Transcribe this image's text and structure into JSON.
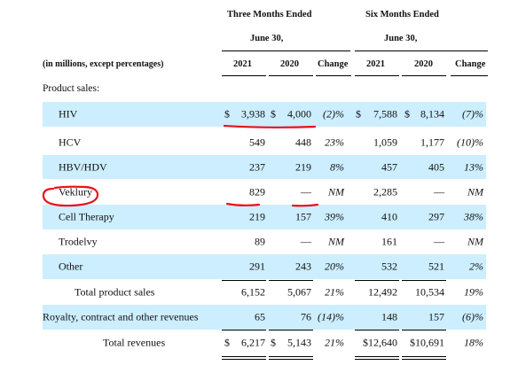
{
  "header": {
    "three_months": "Three Months Ended",
    "three_months_date": "June 30,",
    "six_months": "Six Months Ended",
    "six_months_date": "June 30,",
    "units_note": "(in millions, except percentages)",
    "col_2021a": "2021",
    "col_2020a": "2020",
    "col_change_a": "Change",
    "col_2021b": "2021",
    "col_2020b": "2020",
    "col_change_b": "Change"
  },
  "section_label": "Product sales:",
  "rows": [
    {
      "label": "HIV",
      "d1": "$",
      "v2021a": "3,938",
      "d2": "$",
      "v2020a": "4,000",
      "chg_a": "(2)%",
      "d3": "$",
      "v2021b": "7,588",
      "d4": "$",
      "v2020b": "8,134",
      "chg_b": "(7)%"
    },
    {
      "label": "HCV",
      "v2021a": "549",
      "v2020a": "448",
      "chg_a": "23%",
      "v2021b": "1,059",
      "v2020b": "1,177",
      "chg_b": "(10)%"
    },
    {
      "label": "HBV/HDV",
      "v2021a": "237",
      "v2020a": "219",
      "chg_a": "8%",
      "v2021b": "457",
      "v2020b": "405",
      "chg_b": "13%"
    },
    {
      "label": "Veklury",
      "v2021a": "829",
      "v2020a": "—",
      "chg_a": "NM",
      "v2021b": "2,285",
      "v2020b": "—",
      "chg_b": "NM"
    },
    {
      "label": "Cell Therapy",
      "v2021a": "219",
      "v2020a": "157",
      "chg_a": "39%",
      "v2021b": "410",
      "v2020b": "297",
      "chg_b": "38%"
    },
    {
      "label": "Trodelvy",
      "v2021a": "89",
      "v2020a": "—",
      "chg_a": "NM",
      "v2021b": "161",
      "v2020b": "—",
      "chg_b": "NM"
    },
    {
      "label": "Other",
      "v2021a": "291",
      "v2020a": "243",
      "chg_a": "20%",
      "v2021b": "532",
      "v2020b": "521",
      "chg_b": "2%"
    },
    {
      "label": "Total product sales",
      "v2021a": "6,152",
      "v2020a": "5,067",
      "chg_a": "21%",
      "v2021b": "12,492",
      "v2020b": "10,534",
      "chg_b": "19%"
    },
    {
      "label": "Royalty, contract and other revenues",
      "v2021a": "65",
      "v2020a": "76",
      "chg_a": "(14)%",
      "v2021b": "148",
      "v2020b": "157",
      "chg_b": "(6)%"
    },
    {
      "label": "Total revenues",
      "d1": "$",
      "v2021a": "6,217",
      "d2": "$",
      "v2020a": "5,143",
      "chg_a": "21%",
      "v2021b": "$12,640",
      "v2020b": "$10,691",
      "chg_b": "18%"
    }
  ],
  "annotation_color": "#e8101a",
  "shade_color": "#cceeff"
}
